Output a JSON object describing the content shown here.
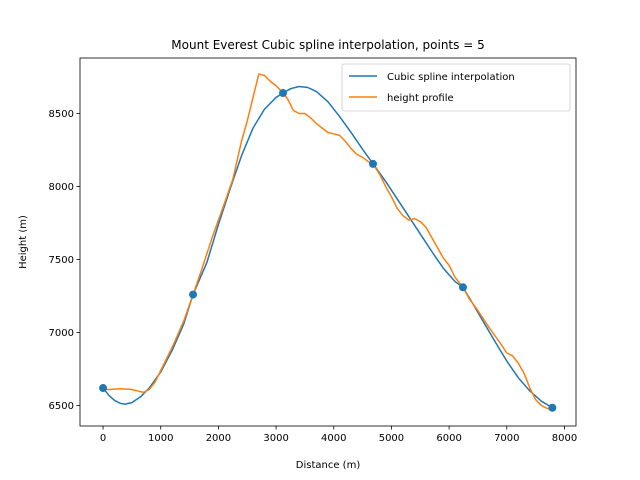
{
  "chart_data": {
    "type": "line",
    "title": "Mount Everest Cubic spline interpolation, points = 5",
    "xlabel": "Distance (m)",
    "ylabel": "Height (m)",
    "xlim": [
      -400,
      8200
    ],
    "ylim": [
      6360,
      8880
    ],
    "xticks": [
      0,
      1000,
      2000,
      3000,
      4000,
      5000,
      6000,
      7000,
      8000
    ],
    "yticks": [
      6500,
      7000,
      7500,
      8000,
      8500
    ],
    "grid": false,
    "legend_position": "top-right",
    "sample_points": {
      "x": [
        0,
        1560,
        3120,
        4680,
        6240,
        7790
      ],
      "y": [
        6620,
        7260,
        8640,
        8155,
        7310,
        6485
      ],
      "color": "#1f77b4"
    },
    "series": [
      {
        "name": "Cubic spline interpolation",
        "color": "#1f77b4",
        "x": [
          0,
          100,
          200,
          300,
          380,
          500,
          650,
          800,
          1000,
          1200,
          1400,
          1560,
          1800,
          2000,
          2200,
          2400,
          2600,
          2800,
          3000,
          3120,
          3250,
          3400,
          3550,
          3700,
          3900,
          4100,
          4300,
          4500,
          4680,
          4900,
          5100,
          5300,
          5500,
          5700,
          5900,
          6100,
          6240,
          6400,
          6600,
          6800,
          7000,
          7200,
          7400,
          7600,
          7790
        ],
        "y": [
          6620,
          6570,
          6535,
          6515,
          6510,
          6520,
          6560,
          6620,
          6730,
          6880,
          7060,
          7260,
          7480,
          7740,
          7980,
          8210,
          8400,
          8530,
          8610,
          8640,
          8670,
          8685,
          8678,
          8650,
          8580,
          8480,
          8370,
          8255,
          8155,
          8035,
          7915,
          7795,
          7675,
          7555,
          7440,
          7350,
          7310,
          7205,
          7070,
          6935,
          6805,
          6690,
          6600,
          6530,
          6485
        ]
      },
      {
        "name": "height profile",
        "color": "#ff7f0e",
        "x": [
          0,
          100,
          300,
          500,
          600,
          700,
          800,
          900,
          1000,
          1200,
          1400,
          1560,
          1700,
          1900,
          2100,
          2250,
          2400,
          2500,
          2600,
          2700,
          2800,
          2900,
          3000,
          3120,
          3200,
          3300,
          3400,
          3500,
          3600,
          3700,
          3800,
          3900,
          4000,
          4100,
          4200,
          4300,
          4400,
          4500,
          4600,
          4680,
          4800,
          4900,
          5000,
          5100,
          5200,
          5300,
          5400,
          5500,
          5600,
          5700,
          5800,
          5900,
          6000,
          6100,
          6240,
          6350,
          6500,
          6700,
          6900,
          7000,
          7100,
          7200,
          7300,
          7400,
          7500,
          7600,
          7700,
          7790
        ],
        "y": [
          6610,
          6610,
          6615,
          6610,
          6600,
          6590,
          6610,
          6660,
          6740,
          6900,
          7080,
          7260,
          7420,
          7660,
          7880,
          8050,
          8310,
          8450,
          8610,
          8770,
          8760,
          8720,
          8690,
          8640,
          8600,
          8520,
          8500,
          8500,
          8470,
          8430,
          8400,
          8370,
          8360,
          8350,
          8310,
          8260,
          8220,
          8200,
          8170,
          8155,
          8080,
          8000,
          7930,
          7850,
          7800,
          7770,
          7780,
          7760,
          7720,
          7650,
          7580,
          7510,
          7460,
          7380,
          7310,
          7230,
          7150,
          7030,
          6920,
          6860,
          6840,
          6790,
          6720,
          6620,
          6540,
          6500,
          6480,
          6480
        ]
      }
    ]
  }
}
